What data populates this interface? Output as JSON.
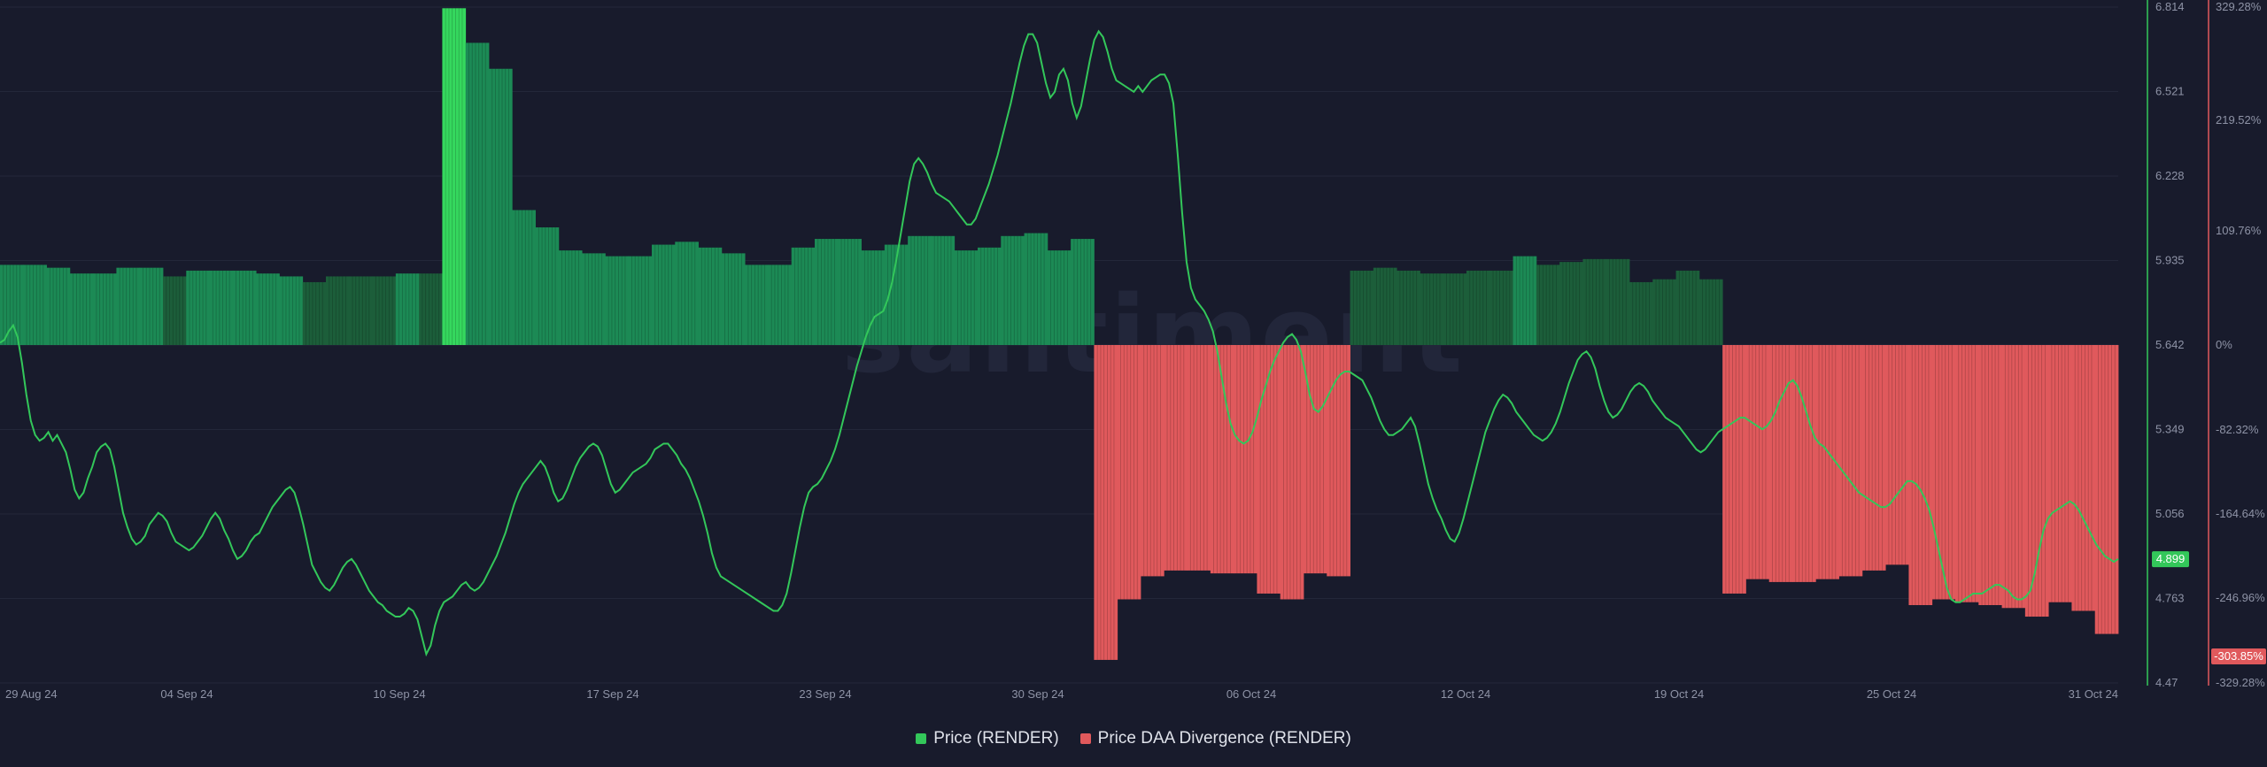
{
  "chart_data": {
    "type": "bar+line",
    "watermark": "santiment",
    "x_ticks": [
      "29 Aug 24",
      "04 Sep 24",
      "10 Sep 24",
      "17 Sep 24",
      "23 Sep 24",
      "30 Sep 24",
      "06 Oct 24",
      "12 Oct 24",
      "19 Oct 24",
      "25 Oct 24",
      "31 Oct 24"
    ],
    "price_axis": {
      "ticks": [
        "6.814",
        "6.521",
        "6.228",
        "5.935",
        "5.642",
        "5.349",
        "5.056",
        "4.763",
        "4.47"
      ],
      "min": 4.47,
      "max": 6.814
    },
    "divergence_axis": {
      "ticks": [
        "329.28%",
        "219.52%",
        "109.76%",
        "0%",
        "-82.32%",
        "-164.64%",
        "-246.96%",
        "-329.28%"
      ],
      "zero_value": 5.642
    },
    "current_price_label": "4.899",
    "current_divergence_label": "-303.85%",
    "series": [
      {
        "name": "Price (RENDER)",
        "color": "#33c75a",
        "axis": "left",
        "values": [
          5.65,
          5.66,
          5.69,
          5.71,
          5.67,
          5.58,
          5.47,
          5.38,
          5.33,
          5.31,
          5.32,
          5.34,
          5.31,
          5.33,
          5.3,
          5.27,
          5.21,
          5.14,
          5.11,
          5.13,
          5.18,
          5.22,
          5.27,
          5.29,
          5.3,
          5.28,
          5.22,
          5.14,
          5.06,
          5.01,
          4.97,
          4.95,
          4.96,
          4.98,
          5.02,
          5.04,
          5.06,
          5.05,
          5.03,
          4.99,
          4.96,
          4.95,
          4.94,
          4.93,
          4.94,
          4.96,
          4.98,
          5.01,
          5.04,
          5.06,
          5.04,
          5.0,
          4.97,
          4.93,
          4.9,
          4.91,
          4.93,
          4.96,
          4.98,
          4.99,
          5.02,
          5.05,
          5.08,
          5.1,
          5.12,
          5.14,
          5.15,
          5.13,
          5.08,
          5.02,
          4.95,
          4.88,
          4.85,
          4.82,
          4.8,
          4.79,
          4.81,
          4.84,
          4.87,
          4.89,
          4.9,
          4.88,
          4.85,
          4.82,
          4.79,
          4.77,
          4.75,
          4.74,
          4.72,
          4.71,
          4.7,
          4.7,
          4.71,
          4.73,
          4.72,
          4.69,
          4.63,
          4.57,
          4.6,
          4.67,
          4.72,
          4.75,
          4.76,
          4.77,
          4.79,
          4.81,
          4.82,
          4.8,
          4.79,
          4.8,
          4.82,
          4.85,
          4.88,
          4.91,
          4.95,
          4.99,
          5.04,
          5.09,
          5.13,
          5.16,
          5.18,
          5.2,
          5.22,
          5.24,
          5.22,
          5.18,
          5.13,
          5.1,
          5.11,
          5.14,
          5.18,
          5.22,
          5.25,
          5.27,
          5.29,
          5.3,
          5.29,
          5.26,
          5.21,
          5.16,
          5.13,
          5.14,
          5.16,
          5.18,
          5.2,
          5.21,
          5.22,
          5.23,
          5.25,
          5.28,
          5.29,
          5.3,
          5.3,
          5.28,
          5.26,
          5.23,
          5.21,
          5.18,
          5.14,
          5.1,
          5.05,
          4.99,
          4.92,
          4.87,
          4.84,
          4.83,
          4.82,
          4.81,
          4.8,
          4.79,
          4.78,
          4.77,
          4.76,
          4.75,
          4.74,
          4.73,
          4.72,
          4.72,
          4.74,
          4.78,
          4.85,
          4.93,
          5.01,
          5.08,
          5.13,
          5.15,
          5.16,
          5.18,
          5.21,
          5.24,
          5.28,
          5.33,
          5.39,
          5.45,
          5.51,
          5.57,
          5.62,
          5.67,
          5.71,
          5.74,
          5.75,
          5.76,
          5.8,
          5.86,
          5.94,
          6.03,
          6.12,
          6.21,
          6.27,
          6.29,
          6.27,
          6.24,
          6.2,
          6.17,
          6.16,
          6.15,
          6.14,
          6.12,
          6.1,
          6.08,
          6.06,
          6.06,
          6.08,
          6.12,
          6.16,
          6.2,
          6.25,
          6.3,
          6.36,
          6.42,
          6.48,
          6.55,
          6.62,
          6.68,
          6.72,
          6.72,
          6.69,
          6.62,
          6.55,
          6.5,
          6.52,
          6.58,
          6.6,
          6.56,
          6.48,
          6.43,
          6.47,
          6.55,
          6.63,
          6.7,
          6.73,
          6.71,
          6.66,
          6.6,
          6.56,
          6.55,
          6.54,
          6.53,
          6.52,
          6.54,
          6.52,
          6.54,
          6.56,
          6.57,
          6.58,
          6.58,
          6.55,
          6.48,
          6.3,
          6.1,
          5.93,
          5.84,
          5.8,
          5.78,
          5.76,
          5.73,
          5.69,
          5.62,
          5.53,
          5.44,
          5.37,
          5.33,
          5.31,
          5.3,
          5.31,
          5.34,
          5.39,
          5.45,
          5.5,
          5.55,
          5.59,
          5.62,
          5.65,
          5.67,
          5.68,
          5.66,
          5.62,
          5.55,
          5.47,
          5.42,
          5.41,
          5.43,
          5.46,
          5.49,
          5.52,
          5.54,
          5.55,
          5.55,
          5.54,
          5.53,
          5.52,
          5.49,
          5.46,
          5.42,
          5.38,
          5.35,
          5.33,
          5.33,
          5.34,
          5.35,
          5.37,
          5.39,
          5.36,
          5.3,
          5.23,
          5.16,
          5.11,
          5.07,
          5.04,
          5.0,
          4.97,
          4.96,
          4.99,
          5.04,
          5.1,
          5.16,
          5.22,
          5.28,
          5.34,
          5.38,
          5.42,
          5.45,
          5.47,
          5.46,
          5.44,
          5.41,
          5.39,
          5.37,
          5.35,
          5.33,
          5.32,
          5.31,
          5.32,
          5.34,
          5.37,
          5.41,
          5.46,
          5.51,
          5.55,
          5.59,
          5.61,
          5.62,
          5.6,
          5.56,
          5.5,
          5.45,
          5.41,
          5.39,
          5.4,
          5.42,
          5.45,
          5.48,
          5.5,
          5.51,
          5.5,
          5.48,
          5.45,
          5.43,
          5.41,
          5.39,
          5.38,
          5.37,
          5.36,
          5.34,
          5.32,
          5.3,
          5.28,
          5.27,
          5.28,
          5.3,
          5.32,
          5.34,
          5.35,
          5.36,
          5.37,
          5.38,
          5.39,
          5.39,
          5.38,
          5.37,
          5.36,
          5.35,
          5.36,
          5.38,
          5.41,
          5.45,
          5.48,
          5.51,
          5.52,
          5.5,
          5.46,
          5.41,
          5.36,
          5.32,
          5.3,
          5.29,
          5.27,
          5.25,
          5.23,
          5.21,
          5.19,
          5.17,
          5.15,
          5.13,
          5.12,
          5.11,
          5.1,
          5.09,
          5.08,
          5.08,
          5.09,
          5.11,
          5.13,
          5.15,
          5.17,
          5.17,
          5.16,
          5.14,
          5.11,
          5.07,
          5.01,
          4.94,
          4.87,
          4.8,
          4.76,
          4.75,
          4.75,
          4.76,
          4.77,
          4.78,
          4.78,
          4.78,
          4.79,
          4.8,
          4.81,
          4.81,
          4.8,
          4.79,
          4.77,
          4.76,
          4.76,
          4.77,
          4.79,
          4.85,
          4.93,
          5.0,
          5.04,
          5.06,
          5.07,
          5.08,
          5.09,
          5.1,
          5.09,
          5.07,
          5.04,
          5.01,
          4.98,
          4.95,
          4.93,
          4.91,
          4.9,
          4.89,
          4.9
        ]
      },
      {
        "name": "Price DAA Divergence (RENDER)",
        "color": "#e0595c",
        "axis": "right",
        "positive_color": "#1c8a55",
        "daily_bars": [
          {
            "value": 5.92,
            "color": "#1c8a55"
          },
          {
            "value": 5.92,
            "color": "#1c8a55"
          },
          {
            "value": 5.91,
            "color": "#1c8a55"
          },
          {
            "value": 5.89,
            "color": "#1c8a55"
          },
          {
            "value": 5.89,
            "color": "#1c8a55"
          },
          {
            "value": 5.91,
            "color": "#1c8a55"
          },
          {
            "value": 5.91,
            "color": "#1c8a55"
          },
          {
            "value": 5.88,
            "color": "#1c5e3a"
          },
          {
            "value": 5.9,
            "color": "#1c8a55"
          },
          {
            "value": 5.9,
            "color": "#1c8a55"
          },
          {
            "value": 5.9,
            "color": "#1c8a55"
          },
          {
            "value": 5.89,
            "color": "#1c8a55"
          },
          {
            "value": 5.88,
            "color": "#1c8a55"
          },
          {
            "value": 5.86,
            "color": "#1c5e3a"
          },
          {
            "value": 5.88,
            "color": "#1c5e3a"
          },
          {
            "value": 5.88,
            "color": "#1c5e3a"
          },
          {
            "value": 5.88,
            "color": "#1c5e3a"
          },
          {
            "value": 5.89,
            "color": "#1c8a55"
          },
          {
            "value": 5.89,
            "color": "#1c5e3a"
          },
          {
            "value": 6.81,
            "color": "#35d85e"
          },
          {
            "value": 6.69,
            "color": "#1c8a55"
          },
          {
            "value": 6.6,
            "color": "#1c8a55"
          },
          {
            "value": 6.11,
            "color": "#1c8a55"
          },
          {
            "value": 6.05,
            "color": "#1c8a55"
          },
          {
            "value": 5.97,
            "color": "#1c8a55"
          },
          {
            "value": 5.96,
            "color": "#1c8a55"
          },
          {
            "value": 5.95,
            "color": "#1c8a55"
          },
          {
            "value": 5.95,
            "color": "#1c8a55"
          },
          {
            "value": 5.99,
            "color": "#1c8a55"
          },
          {
            "value": 6.0,
            "color": "#1c8a55"
          },
          {
            "value": 5.98,
            "color": "#1c8a55"
          },
          {
            "value": 5.96,
            "color": "#1c8a55"
          },
          {
            "value": 5.92,
            "color": "#1c8a55"
          },
          {
            "value": 5.92,
            "color": "#1c8a55"
          },
          {
            "value": 5.98,
            "color": "#1c8a55"
          },
          {
            "value": 6.01,
            "color": "#1c8a55"
          },
          {
            "value": 6.01,
            "color": "#1c8a55"
          },
          {
            "value": 5.97,
            "color": "#1c8a55"
          },
          {
            "value": 5.99,
            "color": "#1c8a55"
          },
          {
            "value": 6.02,
            "color": "#1c8a55"
          },
          {
            "value": 6.02,
            "color": "#1c8a55"
          },
          {
            "value": 5.97,
            "color": "#1c8a55"
          },
          {
            "value": 5.98,
            "color": "#1c8a55"
          },
          {
            "value": 6.02,
            "color": "#1c8a55"
          },
          {
            "value": 6.03,
            "color": "#1c8a55"
          },
          {
            "value": 5.97,
            "color": "#1c8a55"
          },
          {
            "value": 6.01,
            "color": "#1c8a55"
          },
          {
            "value": -303.85,
            "color": "#e0595c"
          },
          {
            "value": 4.76,
            "color": "#e0595c"
          },
          {
            "value": 4.84,
            "color": "#e0595c"
          },
          {
            "value": 4.86,
            "color": "#e0595c"
          },
          {
            "value": 4.86,
            "color": "#e0595c"
          },
          {
            "value": 4.85,
            "color": "#e0595c"
          },
          {
            "value": 4.85,
            "color": "#e0595c"
          },
          {
            "value": 4.78,
            "color": "#e0595c"
          },
          {
            "value": 4.76,
            "color": "#e0595c"
          },
          {
            "value": 4.85,
            "color": "#e0595c"
          },
          {
            "value": 4.84,
            "color": "#e0595c"
          },
          {
            "value": 5.9,
            "color": "#1c5e3a"
          },
          {
            "value": 5.91,
            "color": "#1c5e3a"
          },
          {
            "value": 5.9,
            "color": "#1c5e3a"
          },
          {
            "value": 5.89,
            "color": "#1c5e3a"
          },
          {
            "value": 5.89,
            "color": "#1c5e3a"
          },
          {
            "value": 5.9,
            "color": "#1c5e3a"
          },
          {
            "value": 5.9,
            "color": "#1c5e3a"
          },
          {
            "value": 5.95,
            "color": "#1c8a55"
          },
          {
            "value": 5.92,
            "color": "#1c5e3a"
          },
          {
            "value": 5.93,
            "color": "#1c5e3a"
          },
          {
            "value": 5.94,
            "color": "#1c5e3a"
          },
          {
            "value": 5.94,
            "color": "#1c5e3a"
          },
          {
            "value": 5.86,
            "color": "#1c5e3a"
          },
          {
            "value": 5.87,
            "color": "#1c5e3a"
          },
          {
            "value": 5.9,
            "color": "#1c5e3a"
          },
          {
            "value": 5.87,
            "color": "#1c5e3a"
          },
          {
            "value": 4.78,
            "color": "#e0595c"
          },
          {
            "value": 4.83,
            "color": "#e0595c"
          },
          {
            "value": 4.82,
            "color": "#e0595c"
          },
          {
            "value": 4.82,
            "color": "#e0595c"
          },
          {
            "value": 4.83,
            "color": "#e0595c"
          },
          {
            "value": 4.84,
            "color": "#e0595c"
          },
          {
            "value": 4.86,
            "color": "#e0595c"
          },
          {
            "value": 4.88,
            "color": "#e0595c"
          },
          {
            "value": 4.74,
            "color": "#e0595c"
          },
          {
            "value": 4.76,
            "color": "#e0595c"
          },
          {
            "value": 4.75,
            "color": "#e0595c"
          },
          {
            "value": 4.74,
            "color": "#e0595c"
          },
          {
            "value": 4.73,
            "color": "#e0595c"
          },
          {
            "value": 4.7,
            "color": "#e0595c"
          },
          {
            "value": 4.75,
            "color": "#e0595c"
          },
          {
            "value": 4.72,
            "color": "#e0595c"
          },
          {
            "value": 4.64,
            "color": "#e0595c"
          }
        ]
      }
    ],
    "legend": [
      {
        "label": "Price (RENDER)",
        "color": "#33c75a"
      },
      {
        "label": "Price DAA Divergence (RENDER)",
        "color": "#e0595c"
      }
    ]
  }
}
